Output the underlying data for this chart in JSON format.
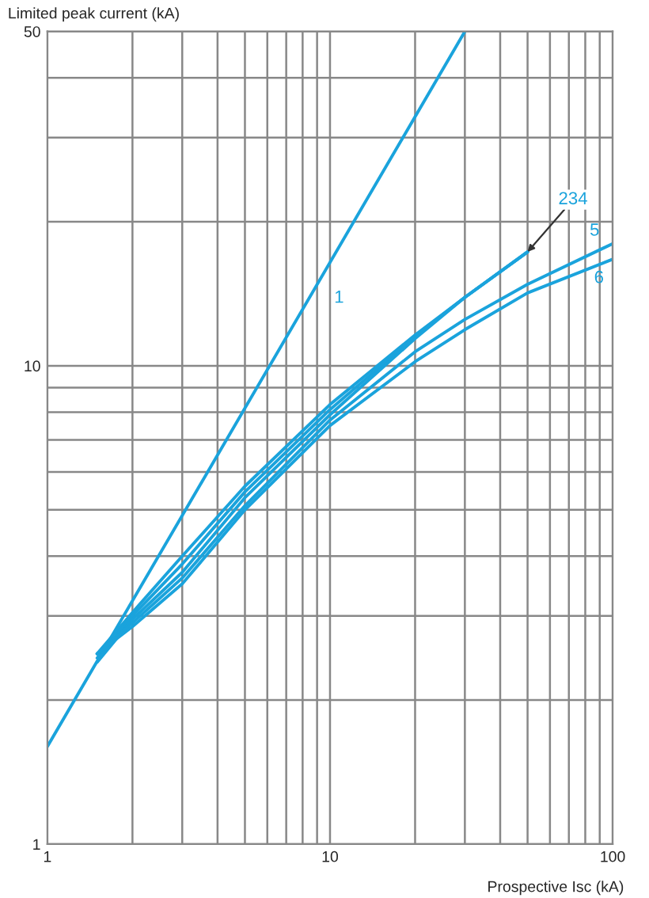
{
  "chart_data": {
    "type": "line",
    "xlabel": "Prospective Isc (kA)",
    "ylabel": "Limited peak current (kA)",
    "log": "xy",
    "grid": true,
    "legend": false,
    "marker": "none",
    "line_style": "solid",
    "xlim": [
      1,
      100
    ],
    "ylim": [
      1,
      50
    ],
    "xticks": [
      1,
      {
        "value": 2,
        "label": null
      },
      {
        "value": 3,
        "label": null
      },
      {
        "value": 4,
        "label": null
      },
      {
        "value": 5,
        "label": null
      },
      {
        "value": 6,
        "label": null
      },
      {
        "value": 7,
        "label": null
      },
      {
        "value": 8,
        "label": null
      },
      {
        "value": 9,
        "label": null
      },
      10,
      {
        "value": 20,
        "label": null
      },
      {
        "value": 30,
        "label": null
      },
      {
        "value": 40,
        "label": null
      },
      {
        "value": 50,
        "label": null
      },
      {
        "value": 60,
        "label": null
      },
      {
        "value": 70,
        "label": null
      },
      {
        "value": 80,
        "label": null
      },
      {
        "value": 90,
        "label": null
      },
      100
    ],
    "yticks": [
      1,
      {
        "value": 2,
        "label": null
      },
      {
        "value": 3,
        "label": null
      },
      {
        "value": 4,
        "label": null
      },
      {
        "value": 5,
        "label": null
      },
      {
        "value": 6,
        "label": null
      },
      {
        "value": 7,
        "label": null
      },
      {
        "value": 8,
        "label": null
      },
      {
        "value": 9,
        "label": null
      },
      10,
      {
        "value": 20,
        "label": null
      },
      {
        "value": 30,
        "label": null
      },
      {
        "value": 40,
        "label": null
      },
      50
    ],
    "series": [
      {
        "name": "1",
        "color": "#1aa3dc",
        "x": [
          1,
          30
        ],
        "values": [
          1.6,
          50
        ]
      },
      {
        "color": "#1aa3dc",
        "x": [
          1.5,
          2,
          3,
          5,
          10,
          20,
          30,
          50
        ],
        "values": [
          2.5,
          3.05,
          4.0,
          5.6,
          8.3,
          11.6,
          13.9,
          17.3
        ]
      },
      {
        "color": "#1aa3dc",
        "x": [
          1.5,
          2,
          3,
          5,
          10,
          20,
          30,
          50
        ],
        "values": [
          2.45,
          3.0,
          3.85,
          5.45,
          8.1,
          11.5,
          13.9,
          17.3
        ]
      },
      {
        "color": "#1aa3dc",
        "x": [
          1.5,
          2,
          3,
          5,
          10,
          20,
          30,
          50
        ],
        "values": [
          2.4,
          2.95,
          3.7,
          5.3,
          7.9,
          11.4,
          13.9,
          17.3
        ]
      },
      {
        "name": "5",
        "color": "#1aa3dc",
        "x": [
          1.5,
          2,
          3,
          5,
          10,
          20,
          30,
          50,
          100
        ],
        "values": [
          2.5,
          2.9,
          3.6,
          5.1,
          7.7,
          10.7,
          12.5,
          14.8,
          18.0
        ]
      },
      {
        "name": "6",
        "color": "#1aa3dc",
        "x": [
          1.5,
          2,
          3,
          5,
          10,
          20,
          30,
          50,
          100
        ],
        "values": [
          2.5,
          2.85,
          3.5,
          5.0,
          7.5,
          10.2,
          11.9,
          14.2,
          16.7
        ]
      }
    ],
    "annotations": [
      {
        "text": "234",
        "x": 50,
        "y": 17.3
      }
    ]
  }
}
